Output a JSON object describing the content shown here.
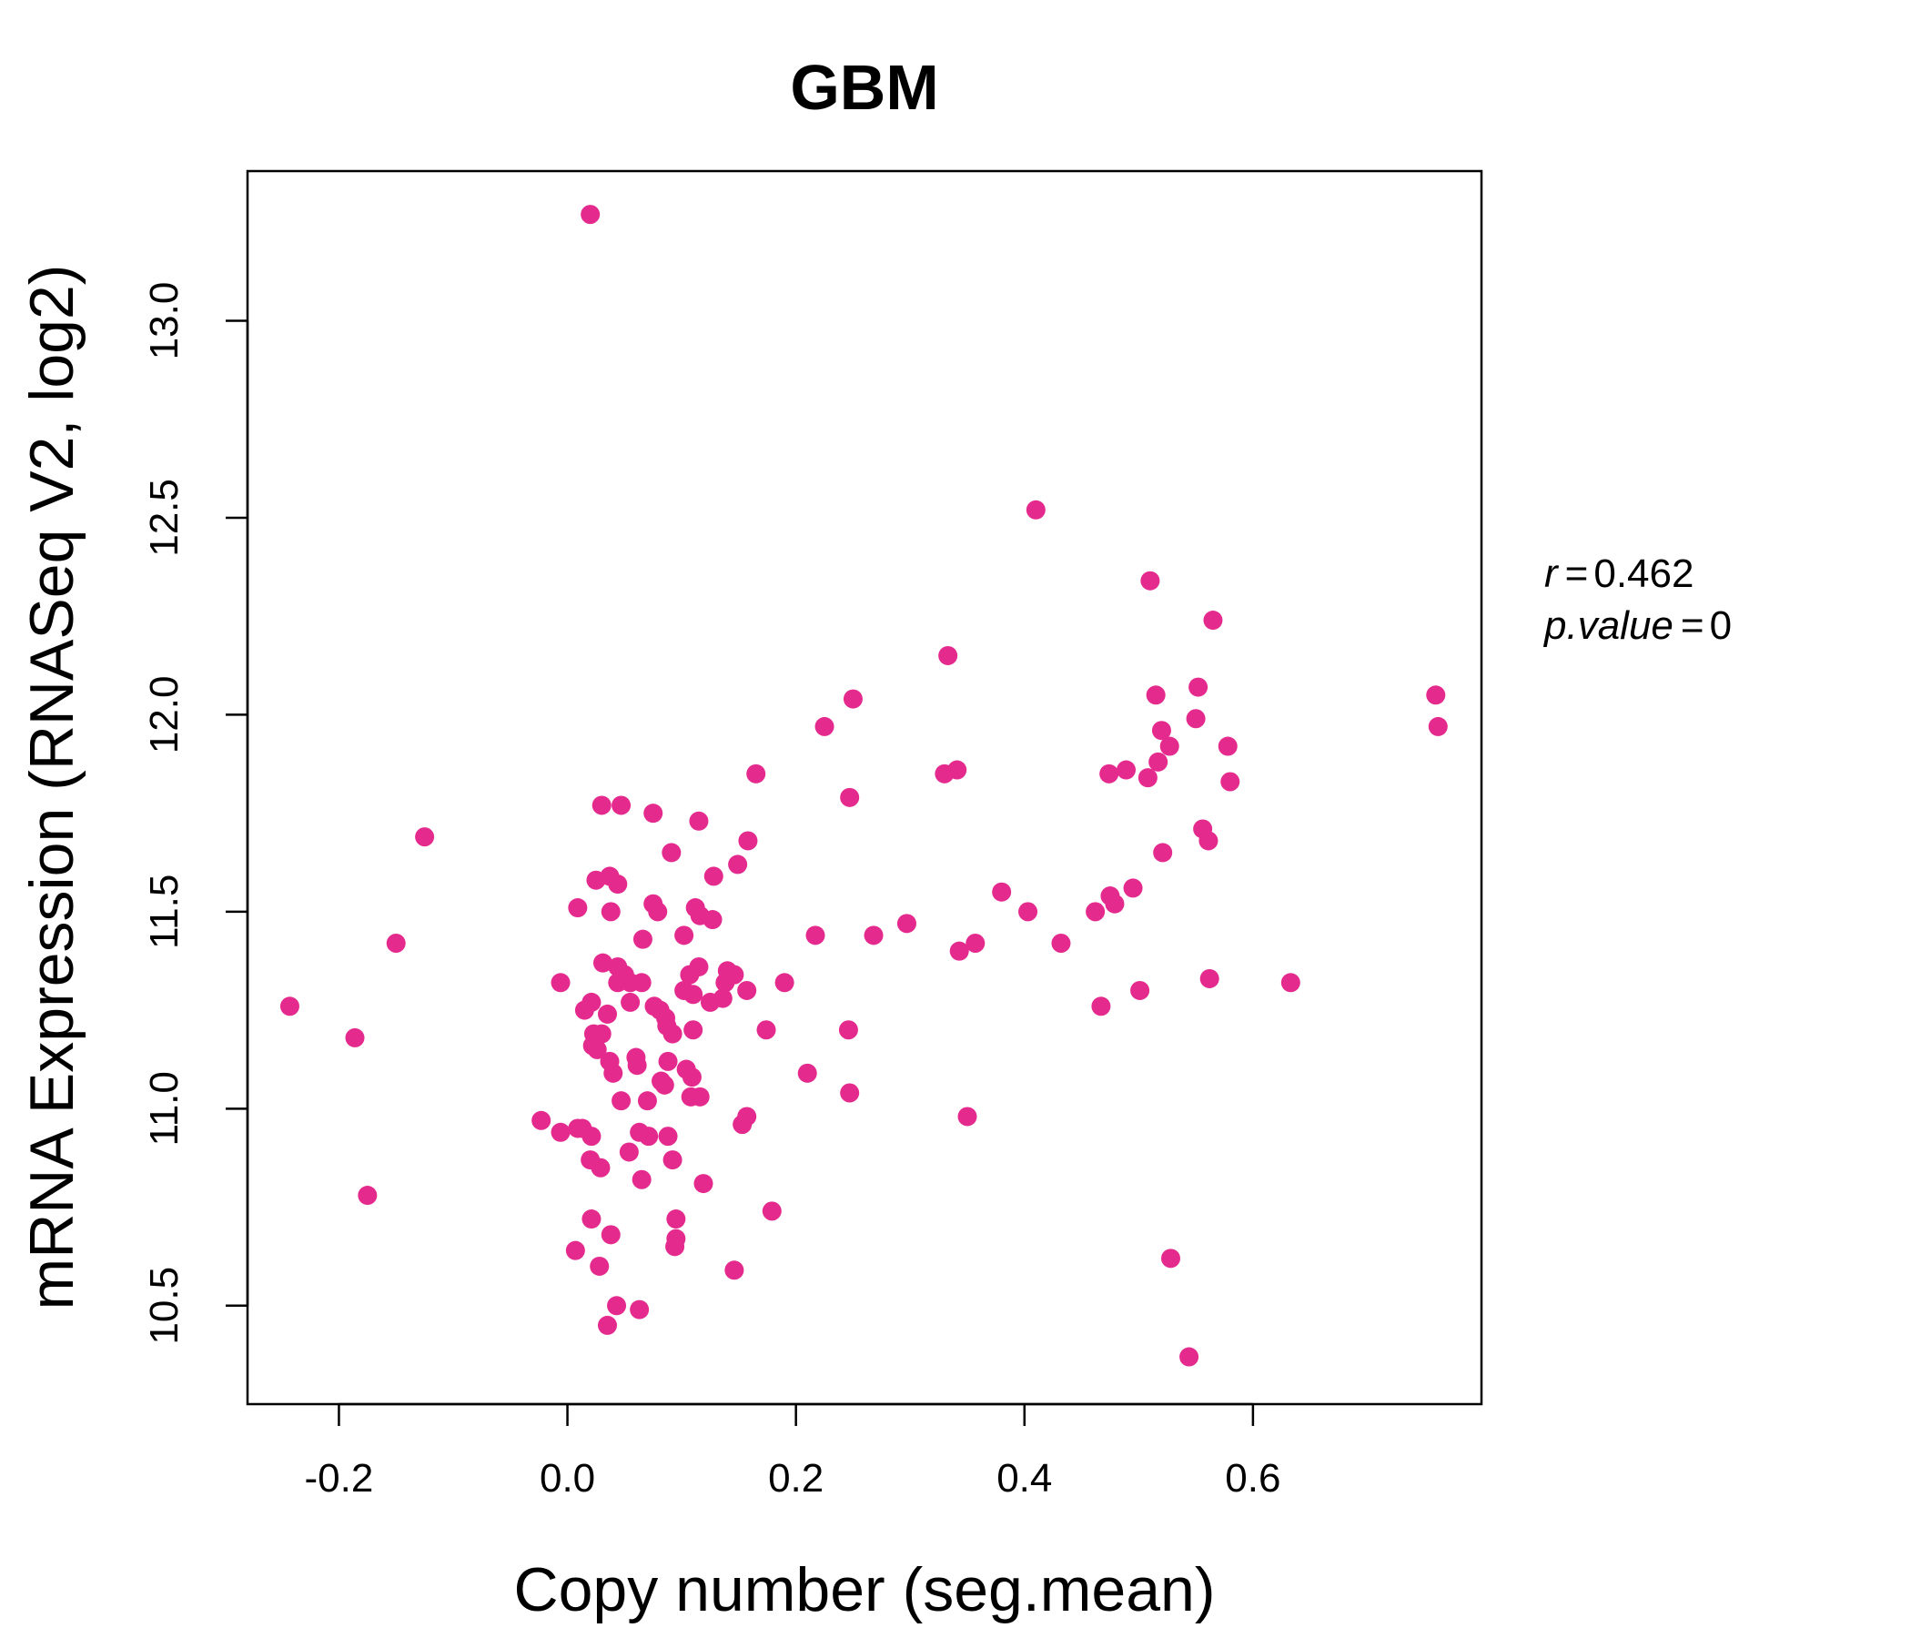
{
  "chart_data": {
    "type": "scatter",
    "title": "GBM",
    "xlabel": "Copy number (seg.mean)",
    "ylabel": "mRNA Expression (RNASeq V2, log2)",
    "xlim": [
      -0.28,
      0.8
    ],
    "ylim": [
      10.25,
      13.38
    ],
    "xticks": [
      -0.2,
      0.0,
      0.2,
      0.4,
      0.6
    ],
    "xtick_labels": [
      "-0.2",
      "0.0",
      "0.2",
      "0.4",
      "0.6"
    ],
    "yticks": [
      10.5,
      11.0,
      11.5,
      12.0,
      12.5,
      13.0
    ],
    "ytick_labels": [
      "10.5",
      "11.0",
      "11.5",
      "12.0",
      "12.5",
      "13.0"
    ],
    "colors": {
      "accent": "#e52a8e",
      "points": "#e52a8e",
      "axis": "#000000"
    },
    "annotations": {
      "r_label": "r",
      "r_value": "0.462",
      "p_label": "p.value",
      "p_value": "0"
    },
    "series": [
      {
        "points": [
          [
            0.02,
            13.27
          ],
          [
            0.41,
            12.52
          ],
          [
            0.51,
            12.34
          ],
          [
            0.565,
            12.24
          ],
          [
            0.333,
            12.15
          ],
          [
            0.25,
            12.04
          ],
          [
            0.225,
            11.97
          ],
          [
            0.515,
            12.05
          ],
          [
            0.552,
            12.07
          ],
          [
            0.55,
            11.99
          ],
          [
            0.76,
            12.05
          ],
          [
            0.762,
            11.97
          ],
          [
            0.52,
            11.96
          ],
          [
            0.527,
            11.92
          ],
          [
            0.578,
            11.92
          ],
          [
            0.517,
            11.88
          ],
          [
            0.508,
            11.84
          ],
          [
            0.489,
            11.86
          ],
          [
            0.474,
            11.85
          ],
          [
            0.58,
            11.83
          ],
          [
            0.33,
            11.85
          ],
          [
            0.341,
            11.86
          ],
          [
            0.165,
            11.85
          ],
          [
            0.247,
            11.79
          ],
          [
            0.03,
            11.77
          ],
          [
            0.047,
            11.77
          ],
          [
            0.075,
            11.75
          ],
          [
            0.115,
            11.73
          ],
          [
            0.556,
            11.71
          ],
          [
            0.561,
            11.68
          ],
          [
            0.158,
            11.68
          ],
          [
            0.521,
            11.65
          ],
          [
            0.091,
            11.65
          ],
          [
            -0.125,
            11.69
          ],
          [
            0.149,
            11.62
          ],
          [
            0.128,
            11.59
          ],
          [
            0.025,
            11.58
          ],
          [
            0.037,
            11.59
          ],
          [
            0.044,
            11.57
          ],
          [
            0.495,
            11.56
          ],
          [
            0.475,
            11.54
          ],
          [
            0.479,
            11.52
          ],
          [
            0.38,
            11.55
          ],
          [
            0.462,
            11.5
          ],
          [
            0.403,
            11.5
          ],
          [
            0.297,
            11.47
          ],
          [
            0.268,
            11.44
          ],
          [
            0.217,
            11.44
          ],
          [
            0.357,
            11.42
          ],
          [
            0.343,
            11.4
          ],
          [
            0.432,
            11.42
          ],
          [
            0.075,
            11.52
          ],
          [
            0.079,
            11.5
          ],
          [
            0.112,
            11.51
          ],
          [
            0.116,
            11.49
          ],
          [
            0.127,
            11.48
          ],
          [
            0.009,
            11.51
          ],
          [
            0.038,
            11.5
          ],
          [
            0.102,
            11.44
          ],
          [
            0.066,
            11.43
          ],
          [
            -0.15,
            11.42
          ],
          [
            0.031,
            11.37
          ],
          [
            0.044,
            11.36
          ],
          [
            0.115,
            11.36
          ],
          [
            0.14,
            11.35
          ],
          [
            0.107,
            11.34
          ],
          [
            0.05,
            11.34
          ],
          [
            0.055,
            11.32
          ],
          [
            0.065,
            11.32
          ],
          [
            0.044,
            11.32
          ],
          [
            0.138,
            11.32
          ],
          [
            0.146,
            11.34
          ],
          [
            0.19,
            11.32
          ],
          [
            0.157,
            11.3
          ],
          [
            0.102,
            11.3
          ],
          [
            0.11,
            11.29
          ],
          [
            0.136,
            11.28
          ],
          [
            0.125,
            11.27
          ],
          [
            0.055,
            11.27
          ],
          [
            -0.006,
            11.32
          ],
          [
            0.562,
            11.33
          ],
          [
            0.633,
            11.32
          ],
          [
            0.501,
            11.3
          ],
          [
            0.467,
            11.26
          ],
          [
            0.021,
            11.27
          ],
          [
            0.076,
            11.26
          ],
          [
            0.081,
            11.25
          ],
          [
            0.086,
            11.23
          ],
          [
            0.015,
            11.25
          ],
          [
            0.035,
            11.24
          ],
          [
            0.087,
            11.21
          ],
          [
            0.092,
            11.19
          ],
          [
            0.11,
            11.2
          ],
          [
            0.174,
            11.2
          ],
          [
            0.246,
            11.2
          ],
          [
            -0.186,
            11.18
          ],
          [
            -0.243,
            11.26
          ],
          [
            0.023,
            11.19
          ],
          [
            0.03,
            11.19
          ],
          [
            0.022,
            11.16
          ],
          [
            0.026,
            11.15
          ],
          [
            0.037,
            11.12
          ],
          [
            0.06,
            11.13
          ],
          [
            0.061,
            11.11
          ],
          [
            0.04,
            11.09
          ],
          [
            0.088,
            11.12
          ],
          [
            0.104,
            11.1
          ],
          [
            0.109,
            11.08
          ],
          [
            0.21,
            11.09
          ],
          [
            0.082,
            11.07
          ],
          [
            0.085,
            11.06
          ],
          [
            0.247,
            11.04
          ],
          [
            0.108,
            11.03
          ],
          [
            0.116,
            11.03
          ],
          [
            0.047,
            11.02
          ],
          [
            0.07,
            11.02
          ],
          [
            0.35,
            10.98
          ],
          [
            0.157,
            10.98
          ],
          [
            0.153,
            10.96
          ],
          [
            -0.023,
            10.97
          ],
          [
            0.009,
            10.95
          ],
          [
            0.013,
            10.95
          ],
          [
            -0.006,
            10.94
          ],
          [
            0.021,
            10.93
          ],
          [
            0.063,
            10.94
          ],
          [
            0.071,
            10.93
          ],
          [
            0.088,
            10.93
          ],
          [
            0.054,
            10.89
          ],
          [
            0.02,
            10.87
          ],
          [
            0.029,
            10.85
          ],
          [
            0.092,
            10.87
          ],
          [
            0.065,
            10.82
          ],
          [
            0.119,
            10.81
          ],
          [
            -0.175,
            10.78
          ],
          [
            0.179,
            10.74
          ],
          [
            0.021,
            10.72
          ],
          [
            0.095,
            10.72
          ],
          [
            0.038,
            10.68
          ],
          [
            0.095,
            10.67
          ],
          [
            0.094,
            10.65
          ],
          [
            0.007,
            10.64
          ],
          [
            0.028,
            10.6
          ],
          [
            0.146,
            10.59
          ],
          [
            0.528,
            10.62
          ],
          [
            0.043,
            10.5
          ],
          [
            0.063,
            10.49
          ],
          [
            0.035,
            10.45
          ],
          [
            0.544,
            10.37
          ]
        ]
      }
    ]
  }
}
